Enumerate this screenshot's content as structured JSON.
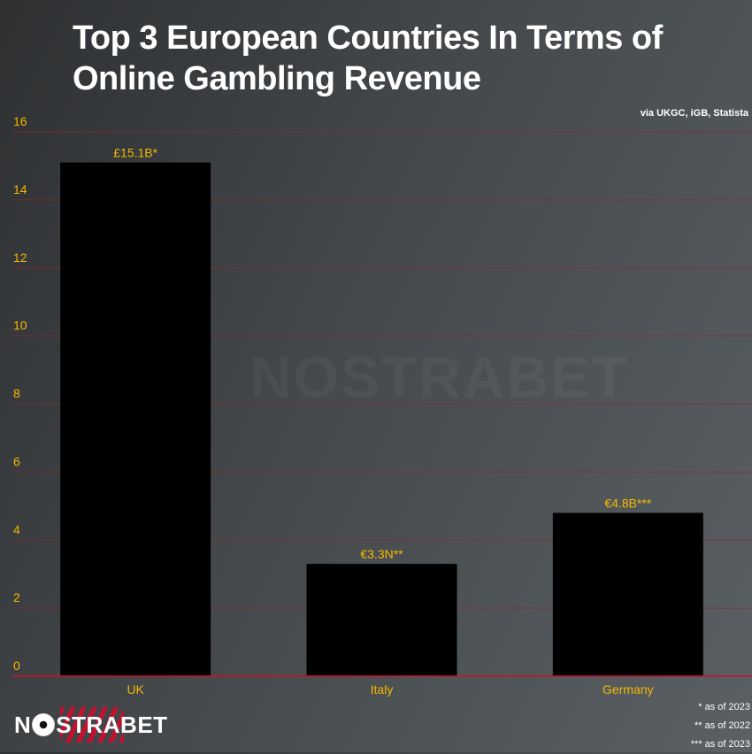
{
  "header": {
    "title_line1": "Top 3 European Countries In Terms of",
    "title_line2": "Online Gambling Revenue",
    "source": "via UKGC, iGB, Statista"
  },
  "watermark": "NOSTRABET",
  "logo": {
    "text_pre": "N",
    "text_post": "STRABET"
  },
  "footnotes": [
    "* as of 2023",
    "** as of 2022",
    "*** as of 2023"
  ],
  "colors": {
    "bar": "#000000",
    "grid": "#8a2a2e",
    "axis": "#c8102e",
    "tick_text": "#f5b800",
    "label_text": "#f5b800"
  },
  "chart_data": {
    "type": "bar",
    "categories": [
      "UK",
      "Italy",
      "Germany"
    ],
    "values": [
      15.1,
      3.3,
      4.8
    ],
    "data_labels": [
      "£15.1B*",
      "€3.3N**",
      "€4.8B***"
    ],
    "title": "Top 3 European Countries In Terms of Online Gambling Revenue",
    "xlabel": "",
    "ylabel": "",
    "ylim": [
      0,
      16
    ],
    "yticks": [
      0,
      2,
      4,
      6,
      8,
      10,
      12,
      14,
      16
    ],
    "grid": true
  }
}
